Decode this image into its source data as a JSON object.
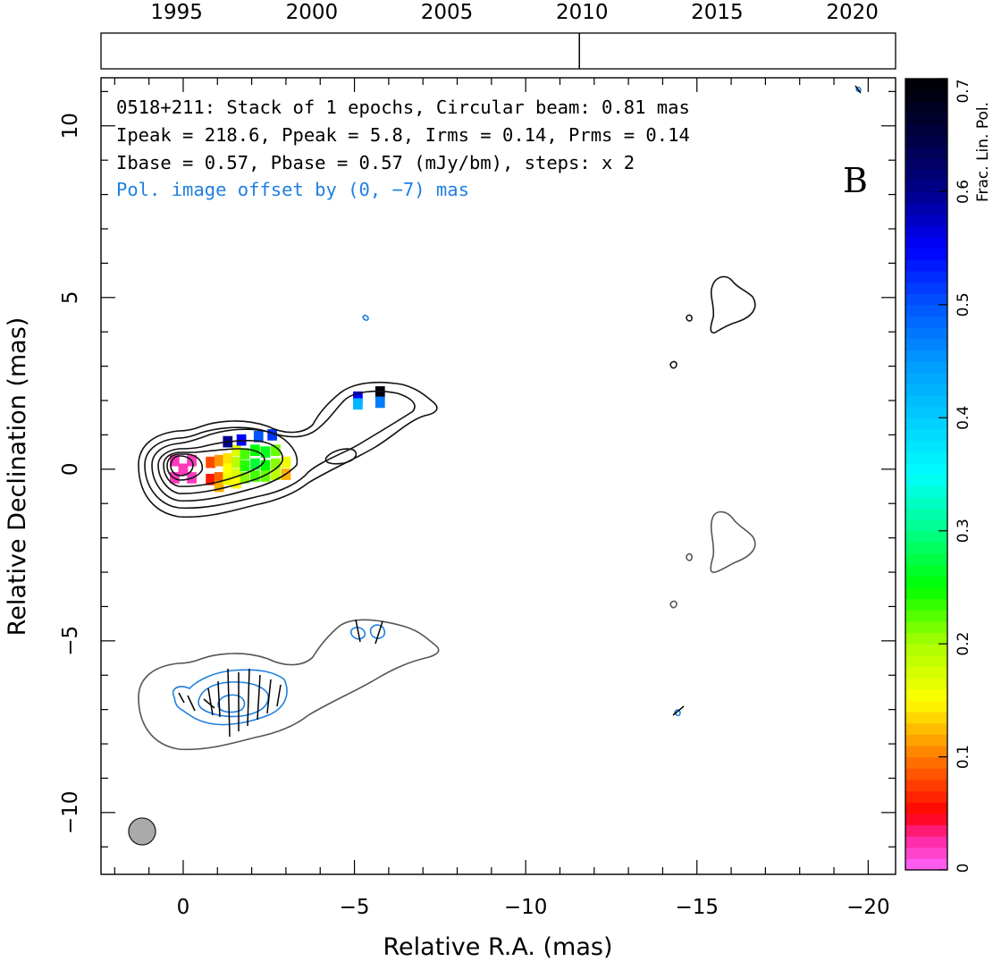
{
  "chart_data": {
    "type": "contour",
    "xlabel": "Relative R.A. (mas)",
    "ylabel": "Relative Declination (mas)",
    "xlim": [
      2.4,
      -20.8
    ],
    "ylim": [
      -11.8,
      11.4
    ],
    "x_ticks": [
      {
        "value": 0,
        "label": "0"
      },
      {
        "value": -5,
        "label": "−5"
      },
      {
        "value": -10,
        "label": "−10"
      },
      {
        "value": -15,
        "label": "−15"
      },
      {
        "value": -20,
        "label": "−20"
      }
    ],
    "y_ticks": [
      {
        "value": 10,
        "label": "10"
      },
      {
        "value": 5,
        "label": "5"
      },
      {
        "value": 0,
        "label": "0"
      },
      {
        "value": -5,
        "label": "−5"
      },
      {
        "value": -10,
        "label": "−10"
      }
    ],
    "timeline": {
      "range": [
        1992.2,
        2021.6
      ],
      "ticks": [
        "1995",
        "2000",
        "2005",
        "2010",
        "2015",
        "2020"
      ],
      "tick_values": [
        1995,
        2000,
        2005,
        2010,
        2015,
        2020
      ],
      "epoch_marker": 2009.9
    },
    "annotations": {
      "line1": "0518+211: Stack of 1 epochs, Circular beam: 0.81 mas",
      "line2": "Ipeak = 218.6, Ppeak = 5.8, Irms = 0.14, Prms = 0.14",
      "line3": "Ibase = 0.57, Pbase = 0.57 (mJy/bm), steps: x 2",
      "line4": "Pol. image offset by (0, −7) mas",
      "panel_letter": "B"
    },
    "colorbar": {
      "label": "Frac. Lin. Pol.",
      "range": [
        0,
        0.7
      ],
      "ticks": [
        {
          "value": 0,
          "label": "0"
        },
        {
          "value": 0.1,
          "label": "0.1"
        },
        {
          "value": 0.2,
          "label": "0.2"
        },
        {
          "value": 0.3,
          "label": "0.3"
        },
        {
          "value": 0.4,
          "label": "0.4"
        },
        {
          "value": 0.5,
          "label": "0.5"
        },
        {
          "value": 0.6,
          "label": "0.6"
        },
        {
          "value": 0.7,
          "label": "0.7"
        }
      ]
    },
    "beam": {
      "x": 1.15,
      "y": -10.6,
      "diameter_mas": 0.81
    },
    "polarization_offset_mas": [
      0,
      -7
    ],
    "frac_pol_pixels": [
      {
        "x": 0.0,
        "y": 0.0,
        "v": 0.02
      },
      {
        "x": 0.25,
        "y": 0.25,
        "v": 0.02
      },
      {
        "x": -0.25,
        "y": 0.25,
        "v": 0.02
      },
      {
        "x": 0.25,
        "y": -0.25,
        "v": 0.02
      },
      {
        "x": -0.25,
        "y": -0.25,
        "v": 0.02
      },
      {
        "x": -0.8,
        "y": 0.2,
        "v": 0.08
      },
      {
        "x": -0.8,
        "y": -0.3,
        "v": 0.06
      },
      {
        "x": -1.05,
        "y": 0.25,
        "v": 0.11
      },
      {
        "x": -1.05,
        "y": -0.25,
        "v": 0.09
      },
      {
        "x": -1.05,
        "y": -0.5,
        "v": 0.12
      },
      {
        "x": -1.3,
        "y": 0.3,
        "v": 0.14
      },
      {
        "x": -1.3,
        "y": 0.0,
        "v": 0.15
      },
      {
        "x": -1.3,
        "y": -0.3,
        "v": 0.16
      },
      {
        "x": -1.55,
        "y": 0.55,
        "v": 0.17
      },
      {
        "x": -1.55,
        "y": 0.2,
        "v": 0.19
      },
      {
        "x": -1.55,
        "y": -0.15,
        "v": 0.17
      },
      {
        "x": -1.55,
        "y": -0.4,
        "v": 0.15
      },
      {
        "x": -1.8,
        "y": 0.45,
        "v": 0.23
      },
      {
        "x": -1.8,
        "y": 0.1,
        "v": 0.24
      },
      {
        "x": -1.8,
        "y": -0.25,
        "v": 0.21
      },
      {
        "x": -2.1,
        "y": 0.55,
        "v": 0.25
      },
      {
        "x": -2.1,
        "y": 0.15,
        "v": 0.27
      },
      {
        "x": -2.1,
        "y": -0.2,
        "v": 0.23
      },
      {
        "x": -2.4,
        "y": 0.5,
        "v": 0.26
      },
      {
        "x": -2.4,
        "y": 0.1,
        "v": 0.25
      },
      {
        "x": -2.4,
        "y": -0.2,
        "v": 0.22
      },
      {
        "x": -2.7,
        "y": 0.55,
        "v": 0.22
      },
      {
        "x": -2.7,
        "y": 0.15,
        "v": 0.21
      },
      {
        "x": -2.7,
        "y": -0.15,
        "v": 0.19
      },
      {
        "x": -3.0,
        "y": 0.2,
        "v": 0.16
      },
      {
        "x": -3.0,
        "y": -0.15,
        "v": 0.12
      },
      {
        "x": -1.3,
        "y": 0.8,
        "v": 0.6
      },
      {
        "x": -1.7,
        "y": 0.85,
        "v": 0.55
      },
      {
        "x": -2.2,
        "y": 0.95,
        "v": 0.5
      },
      {
        "x": -2.6,
        "y": 1.0,
        "v": 0.52
      },
      {
        "x": -5.1,
        "y": 2.1,
        "v": 0.55
      },
      {
        "x": -5.1,
        "y": 1.9,
        "v": 0.42
      },
      {
        "x": -5.75,
        "y": 2.25,
        "v": 0.69
      },
      {
        "x": -5.75,
        "y": 1.95,
        "v": 0.47
      }
    ]
  }
}
